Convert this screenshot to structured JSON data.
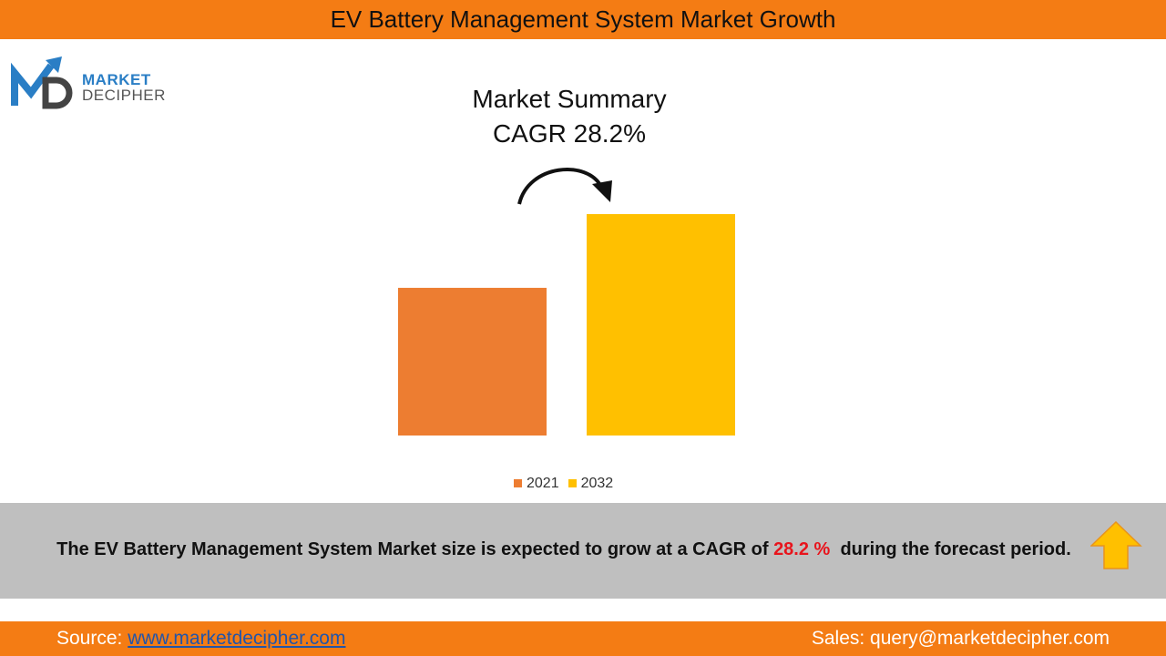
{
  "header": {
    "title": "EV Battery Management System Market Growth"
  },
  "logo": {
    "line1": "MARKET",
    "line2": "DECIPHER"
  },
  "summary": {
    "title": "Market Summary",
    "cagr": "CAGR 28.2%"
  },
  "chart_data": {
    "type": "bar",
    "categories": [
      "2021",
      "2032"
    ],
    "values": [
      66.7,
      100
    ],
    "colors": [
      "#ed7d31",
      "#ffc000"
    ],
    "legend": [
      "2021",
      "2032"
    ],
    "legend_position": "bottom",
    "grid": false,
    "title": "",
    "xlabel": "",
    "ylabel": ""
  },
  "banner": {
    "text_before": "The EV Battery Management System Market size is expected to grow at a CAGR of ",
    "highlight": "28.2 %",
    "text_after": "  during the forecast period.",
    "highlight_color": "#e8141c"
  },
  "footer": {
    "source_label": "Source: ",
    "source_link": "www.marketdecipher.com",
    "sales": "Sales: query@marketdecipher.com"
  },
  "colors": {
    "brand_orange": "#f47c14",
    "band_gray": "#bfbfbf"
  }
}
